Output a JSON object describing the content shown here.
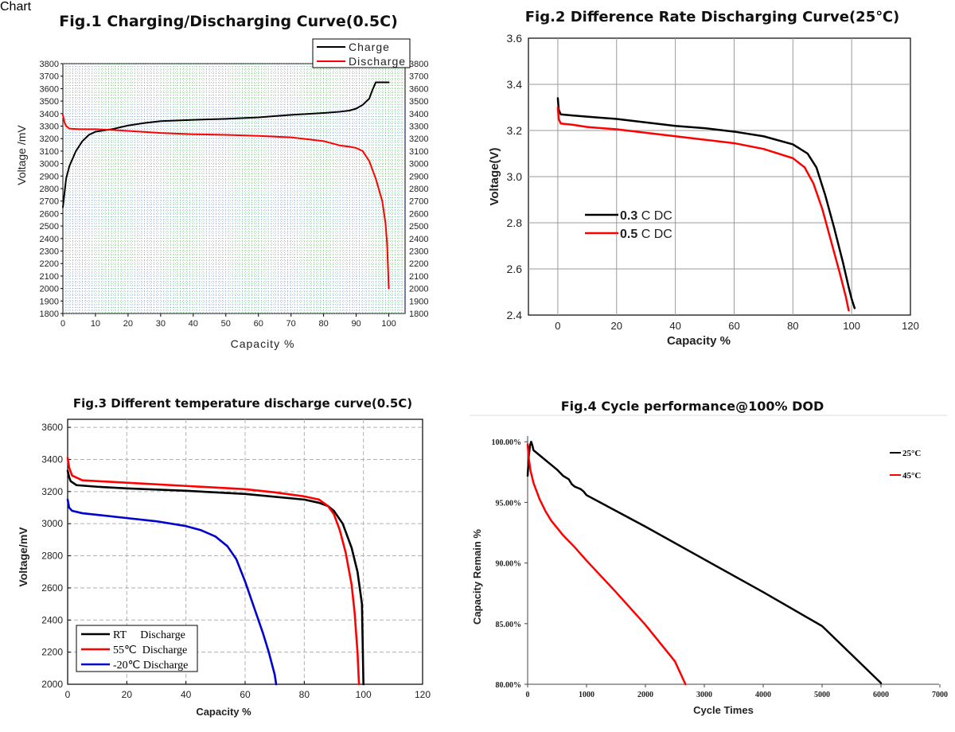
{
  "figures": [
    {
      "title": "Fig.1  Charging/Discharging Curve(0.5C)",
      "legend": [
        "Charge",
        "Discharge"
      ]
    },
    {
      "title": "Fig.2 Difference Rate Discharging Curve(25℃)",
      "legend_bold": [
        "0.3",
        "0.5"
      ],
      "legend_rest": [
        " C DC",
        " C DC"
      ]
    },
    {
      "title": "Fig.3 Different temperature discharge curve(0.5C)",
      "legend": [
        "RT     Discharge",
        "55℃  Discharge",
        "-20℃ Discharge"
      ]
    },
    {
      "title": "Fig.4 Cycle performance@100% DOD",
      "legend": [
        "25°C",
        "45°C"
      ]
    }
  ],
  "chart_data": [
    {
      "type": "line",
      "title": "Fig.1  Charging/Discharging Curve(0.5C)",
      "xlabel": "Capacity  %",
      "ylabel": "Voltage /mV",
      "xlim": [
        0,
        105
      ],
      "ylim": [
        1800,
        3800
      ],
      "grid": true,
      "legend_position": "top-right",
      "x_ticks": [
        "0",
        "10",
        "20",
        "30",
        "40",
        "50",
        "60",
        "70",
        "80",
        "90",
        "100"
      ],
      "y_ticks": [
        "1800",
        "1900",
        "2000",
        "2100",
        "2200",
        "2300",
        "2400",
        "2500",
        "2600",
        "2700",
        "2800",
        "2900",
        "3000",
        "3100",
        "3200",
        "3300",
        "3400",
        "3500",
        "3600",
        "3700",
        "3800"
      ],
      "series": [
        {
          "name": "Charge",
          "color": "#000000",
          "points": [
            [
              0,
              2650
            ],
            [
              1,
              2880
            ],
            [
              2,
              2980
            ],
            [
              4,
              3100
            ],
            [
              6,
              3180
            ],
            [
              8,
              3230
            ],
            [
              10,
              3255
            ],
            [
              15,
              3275
            ],
            [
              20,
              3305
            ],
            [
              25,
              3325
            ],
            [
              30,
              3340
            ],
            [
              40,
              3350
            ],
            [
              50,
              3358
            ],
            [
              60,
              3370
            ],
            [
              70,
              3390
            ],
            [
              80,
              3405
            ],
            [
              85,
              3415
            ],
            [
              88,
              3425
            ],
            [
              90,
              3440
            ],
            [
              92,
              3470
            ],
            [
              94,
              3520
            ],
            [
              95,
              3590
            ],
            [
              96,
              3650
            ],
            [
              100,
              3650
            ]
          ]
        },
        {
          "name": "Discharge",
          "color": "#ff0000",
          "points": [
            [
              0,
              3390
            ],
            [
              0.5,
              3330
            ],
            [
              1,
              3300
            ],
            [
              2,
              3280
            ],
            [
              5,
              3275
            ],
            [
              10,
              3275
            ],
            [
              15,
              3270
            ],
            [
              20,
              3262
            ],
            [
              30,
              3245
            ],
            [
              40,
              3235
            ],
            [
              50,
              3230
            ],
            [
              60,
              3222
            ],
            [
              70,
              3210
            ],
            [
              80,
              3180
            ],
            [
              85,
              3145
            ],
            [
              88,
              3135
            ],
            [
              90,
              3125
            ],
            [
              92,
              3100
            ],
            [
              94,
              3020
            ],
            [
              96,
              2880
            ],
            [
              98,
              2700
            ],
            [
              99,
              2520
            ],
            [
              99.5,
              2350
            ],
            [
              100,
              2000
            ]
          ]
        }
      ]
    },
    {
      "type": "line",
      "title": "Fig.2 Difference Rate Discharging Curve(25℃)",
      "xlabel": "Capacity %",
      "ylabel": "Voltage(V)",
      "xlim": [
        -10,
        120
      ],
      "ylim": [
        2.4,
        3.6
      ],
      "grid": true,
      "legend_position": "bottom-left",
      "x_ticks": [
        "0",
        "20",
        "40",
        "60",
        "80",
        "100",
        "120"
      ],
      "y_ticks": [
        "2.4",
        "2.6",
        "2.8",
        "3.0",
        "3.2",
        "3.4",
        "3.6"
      ],
      "series": [
        {
          "name": "0.3 C DC",
          "color": "#000000",
          "points": [
            [
              0,
              3.34
            ],
            [
              0.3,
              3.29
            ],
            [
              1,
              3.27
            ],
            [
              5,
              3.265
            ],
            [
              10,
              3.26
            ],
            [
              20,
              3.25
            ],
            [
              30,
              3.235
            ],
            [
              40,
              3.22
            ],
            [
              50,
              3.21
            ],
            [
              60,
              3.195
            ],
            [
              70,
              3.175
            ],
            [
              80,
              3.14
            ],
            [
              85,
              3.1
            ],
            [
              88,
              3.04
            ],
            [
              91,
              2.92
            ],
            [
              94,
              2.78
            ],
            [
              97,
              2.63
            ],
            [
              99,
              2.52
            ],
            [
              100,
              2.47
            ],
            [
              101,
              2.43
            ]
          ]
        },
        {
          "name": "0.5 C DC",
          "color": "#ff0000",
          "points": [
            [
              0,
              3.3
            ],
            [
              0.3,
              3.25
            ],
            [
              1,
              3.23
            ],
            [
              5,
              3.225
            ],
            [
              10,
              3.215
            ],
            [
              20,
              3.205
            ],
            [
              30,
              3.19
            ],
            [
              40,
              3.175
            ],
            [
              50,
              3.16
            ],
            [
              60,
              3.145
            ],
            [
              70,
              3.12
            ],
            [
              80,
              3.08
            ],
            [
              84,
              3.04
            ],
            [
              87,
              2.97
            ],
            [
              90,
              2.86
            ],
            [
              93,
              2.72
            ],
            [
              96,
              2.58
            ],
            [
              98,
              2.48
            ],
            [
              99,
              2.42
            ]
          ]
        }
      ]
    },
    {
      "type": "line",
      "title": "Fig.3 Different temperature discharge curve(0.5C)",
      "xlabel": "Capacity %",
      "ylabel": "Voltage/mV",
      "xlim": [
        0,
        120
      ],
      "ylim": [
        2000,
        3650
      ],
      "grid": true,
      "legend_position": "bottom-left",
      "x_ticks": [
        "0",
        "20",
        "40",
        "60",
        "80",
        "100",
        "120"
      ],
      "y_ticks": [
        "2000",
        "2200",
        "2400",
        "2600",
        "2800",
        "3000",
        "3200",
        "3400",
        "3600"
      ],
      "series": [
        {
          "name": "RT Discharge",
          "color": "#000000",
          "points": [
            [
              0,
              3330
            ],
            [
              0.5,
              3290
            ],
            [
              1,
              3265
            ],
            [
              3,
              3240
            ],
            [
              10,
              3230
            ],
            [
              20,
              3220
            ],
            [
              40,
              3205
            ],
            [
              60,
              3185
            ],
            [
              80,
              3150
            ],
            [
              85,
              3130
            ],
            [
              88,
              3110
            ],
            [
              90,
              3080
            ],
            [
              93,
              3000
            ],
            [
              96,
              2850
            ],
            [
              98,
              2700
            ],
            [
              99.5,
              2500
            ],
            [
              100,
              2000
            ]
          ]
        },
        {
          "name": "55℃ Discharge",
          "color": "#ff0000",
          "points": [
            [
              0,
              3410
            ],
            [
              0.5,
              3350
            ],
            [
              1.5,
              3300
            ],
            [
              5,
              3270
            ],
            [
              10,
              3265
            ],
            [
              20,
              3255
            ],
            [
              40,
              3235
            ],
            [
              60,
              3215
            ],
            [
              70,
              3195
            ],
            [
              80,
              3170
            ],
            [
              85,
              3150
            ],
            [
              88,
              3110
            ],
            [
              90,
              3060
            ],
            [
              92,
              2960
            ],
            [
              94,
              2820
            ],
            [
              96,
              2620
            ],
            [
              97,
              2450
            ],
            [
              98,
              2200
            ],
            [
              98.5,
              2000
            ]
          ]
        },
        {
          "name": "-20℃ Discharge",
          "color": "#0000cc",
          "points": [
            [
              0,
              3150
            ],
            [
              0.5,
              3100
            ],
            [
              1.5,
              3080
            ],
            [
              5,
              3065
            ],
            [
              10,
              3055
            ],
            [
              20,
              3035
            ],
            [
              30,
              3015
            ],
            [
              40,
              2985
            ],
            [
              45,
              2960
            ],
            [
              50,
              2920
            ],
            [
              54,
              2860
            ],
            [
              57,
              2780
            ],
            [
              60,
              2640
            ],
            [
              63,
              2480
            ],
            [
              66,
              2320
            ],
            [
              68,
              2200
            ],
            [
              70,
              2060
            ],
            [
              70.5,
              2000
            ]
          ]
        }
      ]
    },
    {
      "type": "line",
      "title": "Fig.4 Cycle performance@100% DOD",
      "xlabel": "Cycle Times",
      "ylabel": "Capacity Remain %",
      "xlim": [
        0,
        7000
      ],
      "ylim": [
        80,
        101
      ],
      "grid": false,
      "legend_position": "top-right",
      "x_ticks": [
        "0",
        "1000",
        "2000",
        "3000",
        "4000",
        "5000",
        "6000",
        "7000"
      ],
      "y_ticks": [
        "80.00%",
        "85.00%",
        "90.00%",
        "95.00%",
        "100.00%"
      ],
      "series": [
        {
          "name": "25°C",
          "color": "#000000",
          "points": [
            [
              0,
              97.2
            ],
            [
              20,
              98.8
            ],
            [
              40,
              99.7
            ],
            [
              60,
              100.0
            ],
            [
              80,
              99.7
            ],
            [
              100,
              99.3
            ],
            [
              200,
              98.9
            ],
            [
              300,
              98.5
            ],
            [
              400,
              98.1
            ],
            [
              500,
              97.7
            ],
            [
              600,
              97.2
            ],
            [
              700,
              96.9
            ],
            [
              750,
              96.5
            ],
            [
              800,
              96.3
            ],
            [
              900,
              96.1
            ],
            [
              950,
              95.9
            ],
            [
              1000,
              95.6
            ],
            [
              2000,
              93.0
            ],
            [
              3000,
              90.3
            ],
            [
              4000,
              87.6
            ],
            [
              5000,
              84.8
            ],
            [
              6000,
              80.1
            ]
          ]
        },
        {
          "name": "45°C",
          "color": "#ff0000",
          "points": [
            [
              0,
              99.8
            ],
            [
              20,
              98.6
            ],
            [
              50,
              97.6
            ],
            [
              100,
              96.6
            ],
            [
              200,
              95.3
            ],
            [
              300,
              94.3
            ],
            [
              400,
              93.5
            ],
            [
              500,
              92.9
            ],
            [
              600,
              92.3
            ],
            [
              800,
              91.3
            ],
            [
              1000,
              90.2
            ],
            [
              1500,
              87.6
            ],
            [
              2000,
              84.9
            ],
            [
              2500,
              81.9
            ],
            [
              2680,
              80.0
            ]
          ]
        }
      ]
    }
  ]
}
